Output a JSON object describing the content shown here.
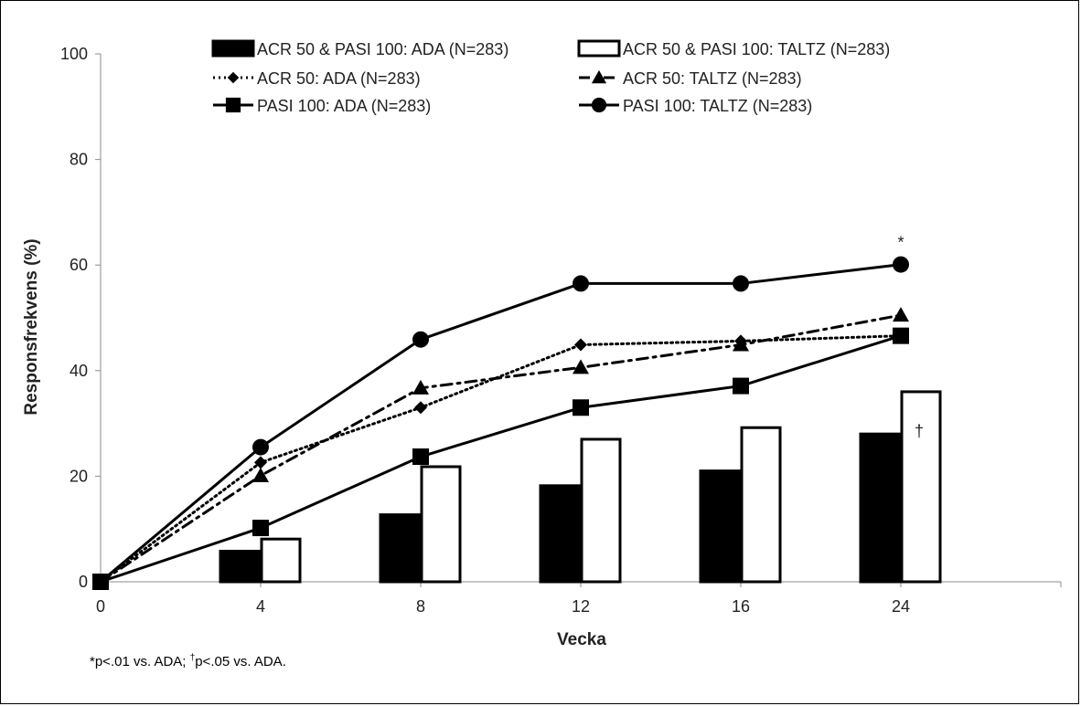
{
  "chart_data": {
    "type": "bar+line",
    "xlabel": "Vecka",
    "ylabel": "Responsfrekvens (%)",
    "ylim": [
      0,
      100
    ],
    "yticks": [
      "0",
      "20",
      "40",
      "60",
      "80",
      "100"
    ],
    "categories": [
      "0",
      "4",
      "8",
      "12",
      "16",
      "24"
    ],
    "bars": [
      {
        "name": "ACR 50 & PASI 100: ADA (N=283)",
        "fill": "#000000",
        "values": [
          null,
          5.8,
          12.7,
          18.2,
          21.0,
          28.0
        ]
      },
      {
        "name": "ACR 50 & PASI 100: TALTZ (N=283)",
        "fill": "#ffffff",
        "values": [
          null,
          8.1,
          21.8,
          27.0,
          29.2,
          36.0
        ]
      }
    ],
    "lines": [
      {
        "name": "ACR 50: ADA (N=283)",
        "style": "dotted",
        "marker": "diamond",
        "values": [
          0,
          22.6,
          33.0,
          44.9,
          45.6,
          46.6
        ]
      },
      {
        "name": "ACR 50: TALTZ (N=283)",
        "style": "dashdot",
        "marker": "triangle",
        "values": [
          0,
          20.1,
          36.7,
          40.6,
          44.9,
          50.5
        ]
      },
      {
        "name": "PASI 100: ADA (N=283)",
        "style": "solid",
        "marker": "square",
        "values": [
          0,
          10.2,
          23.7,
          33.0,
          37.1,
          46.6
        ]
      },
      {
        "name": "PASI 100: TALTZ (N=283)",
        "style": "solid",
        "marker": "circle",
        "values": [
          0,
          25.5,
          45.9,
          56.5,
          56.5,
          60.1
        ]
      }
    ],
    "annotations": [
      {
        "text": "*",
        "category": "24",
        "y": 63.2
      },
      {
        "text": "†",
        "category": "24",
        "y": 27.5
      }
    ],
    "footnote": {
      "part1": "*p<.01 vs. ADA; ",
      "dagger": "†",
      "part2": "p<.05 vs. ADA."
    }
  }
}
